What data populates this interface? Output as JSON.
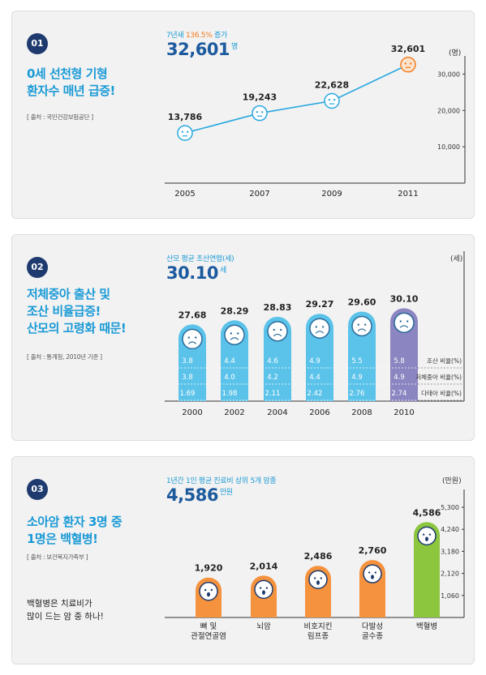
{
  "panels": [
    {
      "badge": "01",
      "headline_lines": [
        "0세 선천형 기형",
        "환자수 매년 급증!"
      ],
      "source": "[ 출처 : 국민건강보험공단 ]",
      "sub_prefix": "7년새 ",
      "sub_highlight": "136.5%",
      "sub_suffix": " 증가",
      "big_value": "32,601",
      "big_unit": "명",
      "unit_label": "(명)"
    },
    {
      "badge": "02",
      "headline_lines": [
        "저체중아 출산 및",
        "조산 비율급증!",
        "산모의 고령화 때문!"
      ],
      "source": "[ 출처 : 통계청, 2010년 기준 ]",
      "sub": "산모 평균 초산연령(세)",
      "big_value": "30.10",
      "big_unit": "세",
      "unit_label": "(세)"
    },
    {
      "badge": "03",
      "headline_lines": [
        "소아암 환자 3명 중",
        "1명은 백혈병!"
      ],
      "source": "[ 출처 : 보건복지가족부 ]",
      "note_lines": [
        "백혈병은 치료비가",
        "많이 드는 암 중 하나!"
      ],
      "sub": "1년간 1인 평균 진료비 상위 5개 암종",
      "big_value": "4,586",
      "big_unit": "만원",
      "unit_label": "(만원)"
    }
  ],
  "chart_data": [
    {
      "type": "line",
      "x": [
        "2005",
        "2007",
        "2009",
        "2011"
      ],
      "values": [
        13786,
        19243,
        22628,
        32601
      ],
      "value_labels": [
        "13,786",
        "19,243",
        "22,628",
        "32,601"
      ],
      "yticks": [
        "10,000",
        "20,000",
        "30,000"
      ],
      "ytick_values": [
        10000,
        20000,
        30000
      ],
      "ylim": [
        0,
        35000
      ],
      "ylabel": "(명)",
      "colors": {
        "line": "#29a8e0",
        "marker": "#29a8e0",
        "last_marker": "#f47c20"
      }
    },
    {
      "type": "bar",
      "categories": [
        "2000",
        "2002",
        "2004",
        "2006",
        "2008",
        "2010"
      ],
      "values": [
        27.68,
        28.29,
        28.83,
        29.27,
        29.6,
        30.1
      ],
      "value_labels": [
        "27.68",
        "28.29",
        "28.83",
        "29.27",
        "29.60",
        "30.10"
      ],
      "ylabel": "(세)",
      "table_rows": [
        {
          "label": "조산 비율(%)",
          "values": [
            "3.8",
            "4.4",
            "4.6",
            "4.9",
            "5.5",
            "5.8"
          ]
        },
        {
          "label": "저체중아 비율(%)",
          "values": [
            "3.8",
            "4.0",
            "4.2",
            "4.4",
            "4.9",
            "4.9"
          ]
        },
        {
          "label": "다태아 비율(%)",
          "values": [
            "1.69",
            "1.98",
            "2.11",
            "2.42",
            "2.76",
            "2.74"
          ]
        }
      ],
      "colors": {
        "bar": "#5bc3ea",
        "last_bar": "#8b85c1"
      }
    },
    {
      "type": "bar",
      "categories": [
        [
          "뼈 및",
          "관절연골염"
        ],
        [
          "뇌암"
        ],
        [
          "비호지킨",
          "림프종"
        ],
        [
          "다발성",
          "골수종"
        ],
        [
          "백혈병"
        ]
      ],
      "values": [
        1920,
        2014,
        2486,
        2760,
        4586
      ],
      "value_labels": [
        "1,920",
        "2,014",
        "2,486",
        "2,760",
        "4,586"
      ],
      "yticks": [
        "1,060",
        "2,120",
        "3,180",
        "4,240",
        "5,300"
      ],
      "ytick_values": [
        1060,
        2120,
        3180,
        4240,
        5300
      ],
      "ylim": [
        0,
        5300
      ],
      "ylabel": "(만원)",
      "colors": {
        "bar": "#f5923e",
        "last_bar": "#8cc63f"
      }
    }
  ]
}
